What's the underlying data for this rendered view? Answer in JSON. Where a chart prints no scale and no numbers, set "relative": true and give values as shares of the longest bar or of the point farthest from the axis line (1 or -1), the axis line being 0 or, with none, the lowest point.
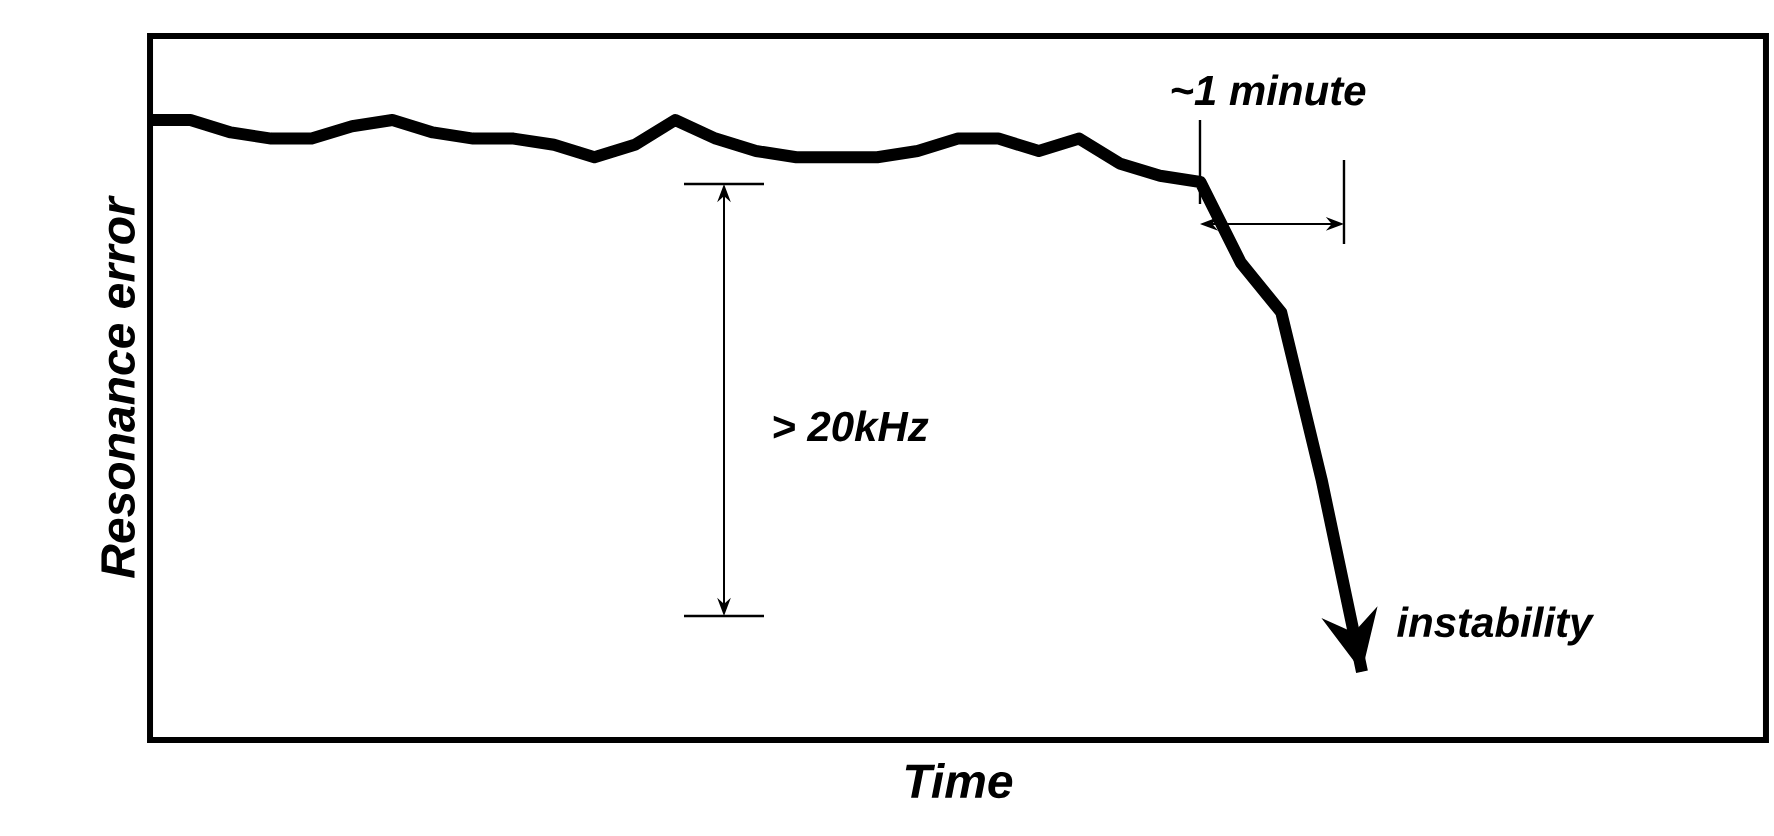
{
  "chart_data": {
    "type": "line",
    "relative": true,
    "xlabel": "Time",
    "ylabel": "Resonance error",
    "color": "#000000",
    "categories": [
      null,
      null,
      null,
      null,
      null,
      null,
      null,
      null,
      null,
      null,
      null,
      null,
      null,
      null,
      null,
      null,
      null,
      null,
      null,
      null,
      null,
      null,
      null,
      null,
      null,
      null,
      null,
      null,
      null,
      null,
      null
    ],
    "values": [
      1.0,
      1.0,
      0.98,
      0.97,
      0.97,
      0.99,
      1.0,
      0.98,
      0.97,
      0.97,
      0.96,
      0.94,
      0.96,
      1.0,
      0.97,
      0.95,
      0.94,
      0.94,
      0.94,
      0.95,
      0.97,
      0.97,
      0.95,
      0.97,
      0.93,
      0.91,
      0.9,
      0.77,
      0.69,
      0.42,
      0.11
    ],
    "annotations": [
      "~1 minute",
      "> 20kHz",
      "instability"
    ]
  }
}
